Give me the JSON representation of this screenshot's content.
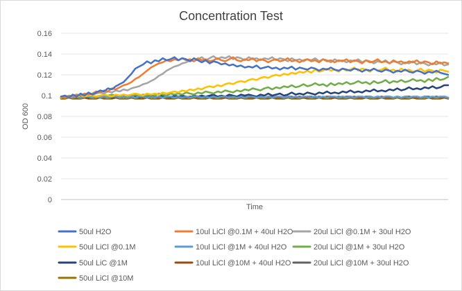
{
  "chart_data": {
    "type": "line",
    "title": "Concentration Test",
    "xlabel": "Time",
    "ylabel": "OD 600",
    "ylim": [
      0,
      0.16
    ],
    "yticks": [
      "0.16",
      "0.14",
      "0.12",
      "0.1",
      "0.08",
      "0.06",
      "0.04",
      "0.02",
      "0"
    ],
    "grid": "horizontal",
    "legend": "bottom",
    "n_points": 100,
    "series": [
      {
        "name": "50ul H2O",
        "color": "#4472C4",
        "values": [
          0.099,
          0.1,
          0.098,
          0.101,
          0.099,
          0.102,
          0.1,
          0.103,
          0.101,
          0.103,
          0.105,
          0.104,
          0.107,
          0.106,
          0.109,
          0.111,
          0.113,
          0.117,
          0.121,
          0.126,
          0.128,
          0.13,
          0.133,
          0.131,
          0.134,
          0.133,
          0.136,
          0.134,
          0.135,
          0.137,
          0.134,
          0.136,
          0.135,
          0.133,
          0.136,
          0.134,
          0.132,
          0.134,
          0.131,
          0.133,
          0.132,
          0.13,
          0.131,
          0.129,
          0.13,
          0.128,
          0.129,
          0.127,
          0.128,
          0.127,
          0.129,
          0.126,
          0.127,
          0.128,
          0.126,
          0.127,
          0.125,
          0.127,
          0.126,
          0.128,
          0.125,
          0.127,
          0.126,
          0.125,
          0.127,
          0.126,
          0.124,
          0.126,
          0.125,
          0.127,
          0.125,
          0.124,
          0.126,
          0.125,
          0.124,
          0.126,
          0.125,
          0.123,
          0.125,
          0.124,
          0.126,
          0.124,
          0.123,
          0.125,
          0.124,
          0.122,
          0.124,
          0.123,
          0.125,
          0.123,
          0.122,
          0.124,
          0.123,
          0.121,
          0.123,
          0.122,
          0.124,
          0.122,
          0.121,
          0.12
        ]
      },
      {
        "name": "10ul LiCl @0.1M + 40ul H2O",
        "color": "#ED7D31",
        "values": [
          0.099,
          0.098,
          0.1,
          0.099,
          0.101,
          0.1,
          0.102,
          0.101,
          0.102,
          0.104,
          0.103,
          0.105,
          0.104,
          0.107,
          0.106,
          0.108,
          0.11,
          0.111,
          0.113,
          0.116,
          0.118,
          0.121,
          0.124,
          0.127,
          0.129,
          0.131,
          0.132,
          0.134,
          0.133,
          0.135,
          0.134,
          0.136,
          0.134,
          0.135,
          0.133,
          0.136,
          0.134,
          0.135,
          0.133,
          0.134,
          0.136,
          0.134,
          0.133,
          0.135,
          0.137,
          0.134,
          0.133,
          0.135,
          0.134,
          0.136,
          0.133,
          0.135,
          0.134,
          0.132,
          0.134,
          0.135,
          0.133,
          0.134,
          0.136,
          0.133,
          0.134,
          0.132,
          0.134,
          0.135,
          0.133,
          0.134,
          0.132,
          0.135,
          0.133,
          0.134,
          0.132,
          0.134,
          0.133,
          0.135,
          0.132,
          0.134,
          0.133,
          0.131,
          0.134,
          0.132,
          0.133,
          0.135,
          0.132,
          0.133,
          0.131,
          0.134,
          0.132,
          0.133,
          0.131,
          0.133,
          0.132,
          0.134,
          0.131,
          0.133,
          0.132,
          0.13,
          0.133,
          0.131,
          0.132,
          0.131
        ]
      },
      {
        "name": "20ul LiCl @0.1M + 30ul H2O",
        "color": "#A5A5A5",
        "values": [
          0.099,
          0.1,
          0.099,
          0.1,
          0.101,
          0.1,
          0.101,
          0.102,
          0.101,
          0.102,
          0.103,
          0.102,
          0.104,
          0.103,
          0.105,
          0.104,
          0.106,
          0.105,
          0.107,
          0.108,
          0.109,
          0.111,
          0.112,
          0.114,
          0.116,
          0.119,
          0.121,
          0.124,
          0.126,
          0.128,
          0.129,
          0.131,
          0.132,
          0.134,
          0.133,
          0.135,
          0.137,
          0.134,
          0.136,
          0.138,
          0.135,
          0.137,
          0.136,
          0.138,
          0.135,
          0.137,
          0.136,
          0.134,
          0.137,
          0.135,
          0.136,
          0.134,
          0.136,
          0.135,
          0.137,
          0.134,
          0.136,
          0.135,
          0.133,
          0.136,
          0.134,
          0.135,
          0.133,
          0.135,
          0.134,
          0.136,
          0.133,
          0.135,
          0.134,
          0.132,
          0.135,
          0.133,
          0.134,
          0.132,
          0.134,
          0.133,
          0.135,
          0.132,
          0.134,
          0.133,
          0.131,
          0.133,
          0.132,
          0.134,
          0.131,
          0.133,
          0.132,
          0.13,
          0.132,
          0.131,
          0.133,
          0.13,
          0.132,
          0.131,
          0.129,
          0.131,
          0.13,
          0.132,
          0.129,
          0.13
        ]
      },
      {
        "name": "50ul LiCl @0.1M",
        "color": "#FFC000",
        "values": [
          0.098,
          0.099,
          0.098,
          0.1,
          0.099,
          0.1,
          0.099,
          0.1,
          0.1,
          0.099,
          0.1,
          0.101,
          0.1,
          0.099,
          0.101,
          0.1,
          0.101,
          0.1,
          0.101,
          0.102,
          0.101,
          0.1,
          0.102,
          0.101,
          0.102,
          0.101,
          0.103,
          0.102,
          0.103,
          0.104,
          0.103,
          0.105,
          0.104,
          0.106,
          0.105,
          0.107,
          0.106,
          0.108,
          0.109,
          0.108,
          0.11,
          0.109,
          0.111,
          0.112,
          0.111,
          0.113,
          0.114,
          0.113,
          0.115,
          0.116,
          0.115,
          0.117,
          0.118,
          0.117,
          0.119,
          0.12,
          0.119,
          0.121,
          0.12,
          0.122,
          0.121,
          0.123,
          0.122,
          0.124,
          0.122,
          0.125,
          0.123,
          0.124,
          0.126,
          0.124,
          0.125,
          0.123,
          0.126,
          0.124,
          0.125,
          0.127,
          0.124,
          0.126,
          0.125,
          0.123,
          0.126,
          0.124,
          0.125,
          0.127,
          0.124,
          0.125,
          0.123,
          0.126,
          0.124,
          0.125,
          0.123,
          0.124,
          0.126,
          0.123,
          0.125,
          0.124,
          0.122,
          0.125,
          0.124,
          0.123
        ]
      },
      {
        "name": "10ul LiCl @1M + 40ul H2O",
        "color": "#5B9BD5",
        "values": [
          0.099,
          0.098,
          0.099,
          0.098,
          0.099,
          0.098,
          0.099,
          0.099,
          0.098,
          0.099,
          0.098,
          0.099,
          0.098,
          0.099,
          0.099,
          0.098,
          0.099,
          0.098,
          0.099,
          0.098,
          0.099,
          0.099,
          0.098,
          0.099,
          0.098,
          0.099,
          0.098,
          0.099,
          0.099,
          0.098,
          0.099,
          0.098,
          0.099,
          0.098,
          0.099,
          0.099,
          0.098,
          0.099,
          0.098,
          0.099,
          0.098,
          0.099,
          0.099,
          0.098,
          0.099,
          0.098,
          0.099,
          0.098,
          0.099,
          0.099,
          0.098,
          0.099,
          0.098,
          0.099,
          0.098,
          0.099,
          0.099,
          0.098,
          0.099,
          0.098,
          0.099,
          0.098,
          0.099,
          0.099,
          0.098,
          0.099,
          0.098,
          0.099,
          0.098,
          0.099,
          0.099,
          0.098,
          0.099,
          0.098,
          0.099,
          0.098,
          0.099,
          0.099,
          0.098,
          0.099,
          0.098,
          0.099,
          0.098,
          0.099,
          0.099,
          0.098,
          0.099,
          0.098,
          0.099,
          0.098,
          0.099,
          0.099,
          0.098,
          0.099,
          0.098,
          0.099,
          0.098,
          0.099,
          0.099,
          0.098
        ]
      },
      {
        "name": "20ul LiCl @1M + 30ul H2O",
        "color": "#70AD47",
        "values": [
          0.099,
          0.098,
          0.099,
          0.1,
          0.099,
          0.098,
          0.1,
          0.099,
          0.1,
          0.099,
          0.1,
          0.099,
          0.1,
          0.101,
          0.1,
          0.099,
          0.101,
          0.1,
          0.099,
          0.101,
          0.1,
          0.101,
          0.1,
          0.101,
          0.1,
          0.102,
          0.101,
          0.1,
          0.102,
          0.101,
          0.102,
          0.101,
          0.103,
          0.102,
          0.101,
          0.103,
          0.102,
          0.104,
          0.103,
          0.102,
          0.104,
          0.103,
          0.105,
          0.104,
          0.103,
          0.105,
          0.104,
          0.106,
          0.105,
          0.107,
          0.106,
          0.105,
          0.107,
          0.108,
          0.106,
          0.108,
          0.107,
          0.109,
          0.108,
          0.11,
          0.108,
          0.109,
          0.111,
          0.109,
          0.11,
          0.112,
          0.11,
          0.111,
          0.109,
          0.112,
          0.11,
          0.112,
          0.111,
          0.113,
          0.111,
          0.112,
          0.114,
          0.112,
          0.113,
          0.111,
          0.114,
          0.112,
          0.113,
          0.115,
          0.112,
          0.114,
          0.113,
          0.115,
          0.113,
          0.114,
          0.116,
          0.114,
          0.115,
          0.113,
          0.116,
          0.114,
          0.117,
          0.115,
          0.116,
          0.118
        ]
      },
      {
        "name": "50ul LiC @1M",
        "color": "#264478",
        "values": [
          0.098,
          0.099,
          0.098,
          0.099,
          0.1,
          0.098,
          0.099,
          0.098,
          0.1,
          0.099,
          0.098,
          0.099,
          0.1,
          0.098,
          0.099,
          0.1,
          0.099,
          0.098,
          0.1,
          0.099,
          0.098,
          0.1,
          0.099,
          0.1,
          0.098,
          0.099,
          0.1,
          0.099,
          0.098,
          0.1,
          0.099,
          0.1,
          0.099,
          0.098,
          0.1,
          0.099,
          0.1,
          0.099,
          0.1,
          0.101,
          0.099,
          0.1,
          0.099,
          0.101,
          0.1,
          0.099,
          0.101,
          0.1,
          0.101,
          0.1,
          0.099,
          0.101,
          0.1,
          0.102,
          0.1,
          0.101,
          0.102,
          0.1,
          0.101,
          0.103,
          0.101,
          0.102,
          0.101,
          0.103,
          0.102,
          0.101,
          0.103,
          0.102,
          0.104,
          0.102,
          0.103,
          0.102,
          0.104,
          0.103,
          0.105,
          0.103,
          0.104,
          0.103,
          0.105,
          0.104,
          0.106,
          0.104,
          0.105,
          0.104,
          0.106,
          0.105,
          0.107,
          0.105,
          0.106,
          0.108,
          0.106,
          0.107,
          0.106,
          0.108,
          0.107,
          0.109,
          0.107,
          0.108,
          0.11,
          0.11
        ]
      },
      {
        "name": "10ul LiCl @10M + 40ul H2O",
        "color": "#9E480E",
        "values": [
          0.098,
          0.098,
          0.099,
          0.098,
          0.098,
          0.099,
          0.098,
          0.098,
          0.098,
          0.099,
          0.098,
          0.098,
          0.099,
          0.098,
          0.098,
          0.098,
          0.099,
          0.098,
          0.098,
          0.099,
          0.098,
          0.098,
          0.098,
          0.099,
          0.098,
          0.098,
          0.099,
          0.098,
          0.098,
          0.098,
          0.099,
          0.098,
          0.098,
          0.099,
          0.098,
          0.098,
          0.098,
          0.099,
          0.098,
          0.098,
          0.099,
          0.098,
          0.098,
          0.098,
          0.099,
          0.098,
          0.098,
          0.099,
          0.098,
          0.098,
          0.098,
          0.099,
          0.098,
          0.098,
          0.099,
          0.098,
          0.098,
          0.098,
          0.099,
          0.098,
          0.098,
          0.099,
          0.098,
          0.098,
          0.098,
          0.099,
          0.098,
          0.098,
          0.099,
          0.098,
          0.098,
          0.098,
          0.099,
          0.098,
          0.098,
          0.099,
          0.098,
          0.098,
          0.098,
          0.099,
          0.098,
          0.098,
          0.099,
          0.098,
          0.098,
          0.098,
          0.099,
          0.098,
          0.098,
          0.099,
          0.098,
          0.098,
          0.098,
          0.099,
          0.098,
          0.098,
          0.099,
          0.098,
          0.098,
          0.098
        ]
      },
      {
        "name": "20ul LiCl @10M + 30ul H2O",
        "color": "#636363",
        "values": [
          0.098,
          0.099,
          0.098,
          0.099,
          0.099,
          0.098,
          0.099,
          0.098,
          0.099,
          0.099,
          0.098,
          0.099,
          0.098,
          0.099,
          0.099,
          0.098,
          0.099,
          0.098,
          0.099,
          0.099,
          0.098,
          0.099,
          0.098,
          0.099,
          0.099,
          0.098,
          0.099,
          0.098,
          0.099,
          0.099,
          0.098,
          0.099,
          0.098,
          0.099,
          0.099,
          0.098,
          0.099,
          0.098,
          0.099,
          0.099,
          0.098,
          0.099,
          0.098,
          0.099,
          0.099,
          0.098,
          0.099,
          0.098,
          0.099,
          0.099,
          0.098,
          0.099,
          0.098,
          0.099,
          0.099,
          0.098,
          0.099,
          0.098,
          0.099,
          0.099,
          0.098,
          0.099,
          0.098,
          0.099,
          0.099,
          0.098,
          0.099,
          0.098,
          0.099,
          0.099,
          0.098,
          0.099,
          0.098,
          0.099,
          0.099,
          0.098,
          0.099,
          0.098,
          0.099,
          0.099,
          0.098,
          0.099,
          0.098,
          0.099,
          0.099,
          0.098,
          0.099,
          0.098,
          0.099,
          0.099,
          0.098,
          0.099,
          0.098,
          0.099,
          0.099,
          0.098,
          0.099,
          0.098,
          0.099,
          0.098
        ]
      },
      {
        "name": "50ul LiCl @10M",
        "color": "#997300",
        "values": [
          0.097,
          0.097,
          0.098,
          0.097,
          0.097,
          0.097,
          0.098,
          0.097,
          0.097,
          0.097,
          0.098,
          0.097,
          0.097,
          0.097,
          0.098,
          0.097,
          0.097,
          0.097,
          0.098,
          0.097,
          0.097,
          0.097,
          0.098,
          0.097,
          0.097,
          0.097,
          0.098,
          0.097,
          0.097,
          0.097,
          0.098,
          0.097,
          0.097,
          0.097,
          0.098,
          0.097,
          0.097,
          0.097,
          0.098,
          0.097,
          0.097,
          0.097,
          0.098,
          0.097,
          0.097,
          0.097,
          0.098,
          0.097,
          0.097,
          0.097,
          0.098,
          0.097,
          0.097,
          0.097,
          0.098,
          0.097,
          0.097,
          0.097,
          0.098,
          0.097,
          0.097,
          0.097,
          0.098,
          0.097,
          0.097,
          0.097,
          0.098,
          0.097,
          0.097,
          0.097,
          0.098,
          0.097,
          0.097,
          0.097,
          0.098,
          0.097,
          0.097,
          0.097,
          0.098,
          0.097,
          0.097,
          0.097,
          0.098,
          0.097,
          0.097,
          0.097,
          0.098,
          0.097,
          0.097,
          0.097,
          0.098,
          0.097,
          0.097,
          0.097,
          0.098,
          0.097,
          0.097,
          0.097,
          0.098,
          0.097
        ]
      }
    ]
  }
}
